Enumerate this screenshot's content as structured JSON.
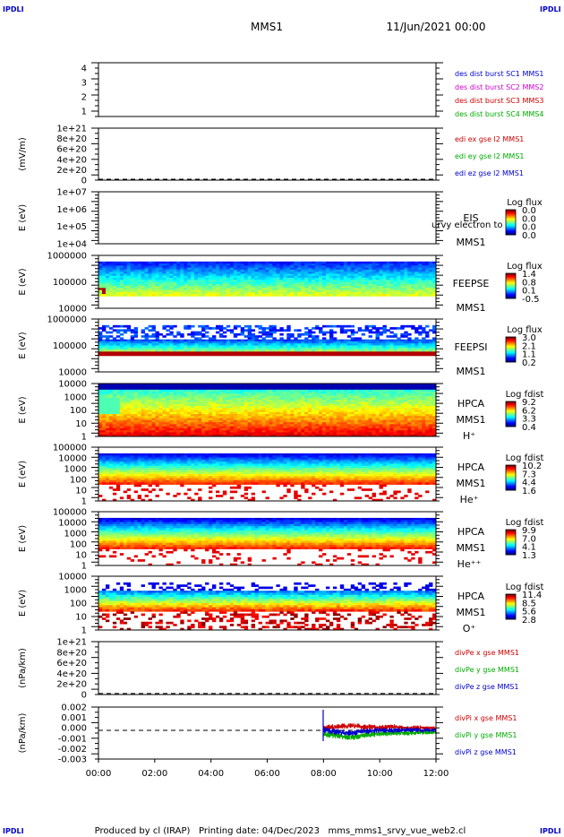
{
  "corner_tags": [
    "IPDLI",
    "IPDLI",
    "IPDLI",
    "IPDLI"
  ],
  "header": {
    "title": "MMS1",
    "datetime": "11/Jun/2021 00:00"
  },
  "footer": {
    "text": "Produced by cl (IRAP)   Printing date: 04/Dec/2023   mms_mms1_srvy_vue_web2.cl"
  },
  "colors": {
    "blue": "#0000cc",
    "magenta": "#cc00cc",
    "red": "#cc0000",
    "green": "#00aa00"
  },
  "chart_data": [
    {
      "type": "line",
      "panel": "des-dist",
      "ylabel": "",
      "yticks": [
        "4",
        "3",
        "2",
        "1"
      ],
      "ylim": [
        0.6,
        4.4
      ],
      "legend": [
        {
          "text": "des dist burst SC1 MMS1",
          "color": "#0000cc"
        },
        {
          "text": "des dist burst SC2 MMS2",
          "color": "#cc00cc"
        },
        {
          "text": "des dist burst SC3 MMS3",
          "color": "#cc0000"
        },
        {
          "text": "des dist burst SC4 MMS4",
          "color": "#00aa00"
        }
      ]
    },
    {
      "type": "line",
      "panel": "edi-e",
      "ylabel": "(mV/m)",
      "yticks": [
        "1e+21",
        "8e+20",
        "6e+20",
        "4e+20",
        "2e+20",
        "0"
      ],
      "ylim": [
        -2e+19,
        1.08e+21
      ],
      "zero_line": true,
      "legend": [
        {
          "text": "edi ex gse l2 MMS1",
          "color": "#cc0000"
        },
        {
          "text": "edi ey gse l2 MMS1",
          "color": "#00aa00"
        },
        {
          "text": "edi ez gse l2 MMS1",
          "color": "#0000cc"
        }
      ]
    },
    {
      "type": "heatmap",
      "panel": "eis",
      "ylabel": "E (eV)",
      "yscale": "log",
      "yticks": [
        "1e+07",
        "1e+06",
        "1e+05",
        "1e+04"
      ],
      "ylim": [
        10000.0,
        10000000.0
      ],
      "labels": [
        "EIS",
        "MMS1"
      ],
      "overlay_text": "urvy electron to",
      "colorbar": {
        "title": "Log flux",
        "ticks": [
          "0.0",
          "0.0",
          "0.0",
          "0.0"
        ]
      }
    },
    {
      "type": "heatmap",
      "panel": "feepse",
      "ylabel": "E (eV)",
      "yscale": "log",
      "yticks": [
        "1000000",
        "100000",
        "10000"
      ],
      "ylim": [
        10000.0,
        1600000.0
      ],
      "labels": [
        "FEEPSE",
        "MMS1"
      ],
      "colorbar": {
        "title": "Log flux",
        "ticks": [
          "1.4",
          "0.8",
          "0.1",
          "-0.5"
        ]
      }
    },
    {
      "type": "heatmap",
      "panel": "feepsi",
      "ylabel": "E (eV)",
      "yscale": "log",
      "yticks": [
        "1000000",
        "100000",
        "10000"
      ],
      "ylim": [
        10000.0,
        1600000.0
      ],
      "labels": [
        "FEEPSI",
        "MMS1"
      ],
      "colorbar": {
        "title": "Log flux",
        "ticks": [
          "3.0",
          "2.1",
          "1.1",
          "0.2"
        ]
      }
    },
    {
      "type": "heatmap",
      "panel": "hpca-h",
      "ylabel": "E (eV)",
      "yscale": "log",
      "yticks": [
        "10000",
        "1000",
        "100",
        "10",
        "1"
      ],
      "ylim": [
        1,
        40000.0
      ],
      "labels": [
        "HPCA",
        "MMS1",
        "H⁺"
      ],
      "colorbar": {
        "title": "Log fdist",
        "ticks": [
          "9.2",
          "6.2",
          "3.3",
          "0.4"
        ]
      }
    },
    {
      "type": "heatmap",
      "panel": "hpca-he1",
      "ylabel": "E (eV)",
      "yscale": "log",
      "yticks": [
        "100000",
        "10000",
        "1000",
        "100",
        "10",
        "1"
      ],
      "ylim": [
        1,
        100000.0
      ],
      "labels": [
        "HPCA",
        "MMS1",
        "He⁺"
      ],
      "colorbar": {
        "title": "Log fdist",
        "ticks": [
          "10.2",
          "7.3",
          "4.4",
          "1.6"
        ]
      }
    },
    {
      "type": "heatmap",
      "panel": "hpca-he2",
      "ylabel": "E (eV)",
      "yscale": "log",
      "yticks": [
        "100000",
        "10000",
        "1000",
        "100",
        "10",
        "1"
      ],
      "ylim": [
        1,
        100000.0
      ],
      "labels": [
        "HPCA",
        "MMS1",
        "He⁺⁺"
      ],
      "colorbar": {
        "title": "Log fdist",
        "ticks": [
          "9.9",
          "7.0",
          "4.1",
          "1.3"
        ]
      }
    },
    {
      "type": "heatmap",
      "panel": "hpca-o",
      "ylabel": "E (eV)",
      "yscale": "log",
      "yticks": [
        "10000",
        "1000",
        "100",
        "10",
        "1"
      ],
      "ylim": [
        1,
        40000.0
      ],
      "labels": [
        "HPCA",
        "MMS1",
        "O⁺"
      ],
      "colorbar": {
        "title": "Log fdist",
        "ticks": [
          "11.4",
          "8.5",
          "5.6",
          "2.8"
        ]
      }
    },
    {
      "type": "line",
      "panel": "divpe",
      "ylabel": "(nPa/km)",
      "yticks": [
        "1e+21",
        "8e+20",
        "6e+20",
        "4e+20",
        "2e+20",
        "0"
      ],
      "ylim": [
        -2e+19,
        1.08e+21
      ],
      "zero_line": true,
      "legend": [
        {
          "text": "divPe x gse MMS1",
          "color": "#cc0000"
        },
        {
          "text": "divPe y gse MMS1",
          "color": "#00aa00"
        },
        {
          "text": "divPe z gse MMS1",
          "color": "#0000cc"
        }
      ]
    },
    {
      "type": "line",
      "panel": "divpi",
      "ylabel": "(nPa/km)",
      "yticks": [
        "0.002",
        "0.001",
        "0.000",
        "-0.001",
        "-0.002",
        "-0.003"
      ],
      "ylim": [
        -0.0032,
        0.0026
      ],
      "zero_line": true,
      "legend": [
        {
          "text": "divPi x gse MMS1",
          "color": "#cc0000"
        },
        {
          "text": "divPi y gse MMS1",
          "color": "#00aa00"
        },
        {
          "text": "divPi z gse MMS1",
          "color": "#0000cc"
        }
      ],
      "series": [
        {
          "color": "#cc0000",
          "x": [
            "08:00",
            "08:30",
            "09:00",
            "09:30",
            "10:00",
            "10:30",
            "11:00",
            "11:30",
            "12:00"
          ],
          "values": [
            0.0003,
            0.0004,
            0.0005,
            0.0004,
            0.0003,
            0.0004,
            0.0003,
            0.0003,
            0.0002
          ]
        },
        {
          "color": "#00aa00",
          "x": [
            "08:00",
            "08:30",
            "09:00",
            "09:30",
            "10:00",
            "10:30",
            "11:00",
            "11:30",
            "12:00"
          ],
          "values": [
            -0.0004,
            -0.0006,
            -0.0008,
            -0.0005,
            -0.0004,
            -0.0003,
            -0.0003,
            -0.0002,
            -0.0002
          ]
        },
        {
          "color": "#0000cc",
          "x": [
            "08:00",
            "08:30",
            "09:00",
            "09:30",
            "10:00",
            "10:30",
            "11:00",
            "11:30",
            "12:00"
          ],
          "values": [
            0.0001,
            -0.0002,
            -0.0003,
            -0.0001,
            0.0,
            0.0,
            0.0001,
            0.0,
            0.0
          ]
        }
      ]
    }
  ],
  "xaxis": {
    "ticks": [
      "00:00",
      "02:00",
      "04:00",
      "06:00",
      "08:00",
      "10:00",
      "12:00"
    ],
    "range_hours": [
      0,
      12
    ]
  }
}
